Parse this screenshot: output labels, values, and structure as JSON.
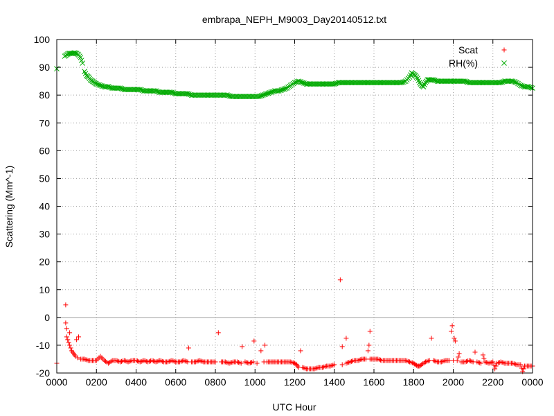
{
  "chart_data": {
    "type": "scatter",
    "title": "embrapa_NEPH_M9003_Day20140512.txt",
    "xlabel": "UTC Hour",
    "ylabel": "Scattering (Mm^-1)",
    "xlim": [
      0,
      24
    ],
    "ylim": [
      -20,
      100
    ],
    "grid": true,
    "legend_position": "top-right",
    "x_ticks": [
      {
        "value": 0,
        "label": "0000"
      },
      {
        "value": 2,
        "label": "0200"
      },
      {
        "value": 4,
        "label": "0400"
      },
      {
        "value": 6,
        "label": "0600"
      },
      {
        "value": 8,
        "label": "0800"
      },
      {
        "value": 10,
        "label": "1000"
      },
      {
        "value": 12,
        "label": "1200"
      },
      {
        "value": 14,
        "label": "1400"
      },
      {
        "value": 16,
        "label": "1600"
      },
      {
        "value": 18,
        "label": "1800"
      },
      {
        "value": 20,
        "label": "2000"
      },
      {
        "value": 22,
        "label": "2200"
      },
      {
        "value": 24,
        "label": "0000"
      }
    ],
    "y_ticks": [
      -20,
      -10,
      0,
      10,
      20,
      30,
      40,
      50,
      60,
      70,
      80,
      90,
      100
    ],
    "series": [
      {
        "name": "Scat",
        "marker": "plus",
        "color": "#ff0000",
        "points": [
          [
            0.0,
            -16.5
          ],
          [
            0.45,
            4.5
          ],
          [
            0.45,
            -2.0
          ],
          [
            0.5,
            -4.0
          ],
          [
            0.5,
            -7.0
          ],
          [
            0.55,
            -8.0
          ],
          [
            0.6,
            -9.0
          ],
          [
            0.65,
            -10.0
          ],
          [
            0.65,
            -5.5
          ],
          [
            0.7,
            -11.0
          ],
          [
            0.75,
            -12.0
          ],
          [
            0.8,
            -12.5
          ],
          [
            0.85,
            -13.0
          ],
          [
            0.9,
            -13.5
          ],
          [
            0.95,
            -14.0
          ],
          [
            1.0,
            -8.0
          ],
          [
            1.05,
            -14.5
          ],
          [
            1.1,
            -7.0
          ],
          [
            1.2,
            -15.0
          ],
          [
            1.4,
            -15.0
          ],
          [
            1.6,
            -15.5
          ],
          [
            1.8,
            -15.5
          ],
          [
            2.0,
            -15.5
          ],
          [
            2.2,
            -14.0
          ],
          [
            2.4,
            -15.5
          ],
          [
            2.6,
            -16.5
          ],
          [
            2.8,
            -15.5
          ],
          [
            3.0,
            -15.5
          ],
          [
            3.2,
            -16.0
          ],
          [
            3.4,
            -15.5
          ],
          [
            3.6,
            -16.0
          ],
          [
            3.8,
            -15.5
          ],
          [
            4.0,
            -15.5
          ],
          [
            4.2,
            -16.0
          ],
          [
            4.4,
            -15.5
          ],
          [
            4.6,
            -16.0
          ],
          [
            4.8,
            -15.5
          ],
          [
            5.0,
            -16.0
          ],
          [
            5.2,
            -15.5
          ],
          [
            5.4,
            -16.0
          ],
          [
            5.6,
            -16.0
          ],
          [
            5.8,
            -15.5
          ],
          [
            6.0,
            -16.0
          ],
          [
            6.2,
            -16.0
          ],
          [
            6.4,
            -15.5
          ],
          [
            6.6,
            -16.0
          ],
          [
            6.65,
            -11.0
          ],
          [
            6.8,
            -16.0
          ],
          [
            7.0,
            -16.0
          ],
          [
            7.2,
            -15.5
          ],
          [
            7.4,
            -16.0
          ],
          [
            7.6,
            -16.0
          ],
          [
            7.8,
            -16.0
          ],
          [
            8.0,
            -16.0
          ],
          [
            8.15,
            -5.5
          ],
          [
            8.3,
            -16.0
          ],
          [
            8.5,
            -16.0
          ],
          [
            8.7,
            -16.5
          ],
          [
            8.9,
            -16.0
          ],
          [
            9.1,
            -16.0
          ],
          [
            9.3,
            -16.5
          ],
          [
            9.35,
            -10.5
          ],
          [
            9.5,
            -16.0
          ],
          [
            9.7,
            -16.5
          ],
          [
            9.9,
            -16.0
          ],
          [
            9.95,
            -8.5
          ],
          [
            10.1,
            -16.5
          ],
          [
            10.3,
            -12.0
          ],
          [
            10.45,
            -16.0
          ],
          [
            10.5,
            -10.0
          ],
          [
            10.6,
            -16.0
          ],
          [
            10.8,
            -16.0
          ],
          [
            11.0,
            -16.0
          ],
          [
            11.2,
            -16.0
          ],
          [
            11.4,
            -16.0
          ],
          [
            11.6,
            -16.0
          ],
          [
            11.8,
            -16.0
          ],
          [
            12.0,
            -16.5
          ],
          [
            12.1,
            -17.0
          ],
          [
            12.2,
            -18.0
          ],
          [
            12.3,
            -12.0
          ],
          [
            12.4,
            -18.0
          ],
          [
            12.6,
            -18.5
          ],
          [
            12.8,
            -18.5
          ],
          [
            13.0,
            -18.5
          ],
          [
            13.2,
            -18.0
          ],
          [
            13.4,
            -18.0
          ],
          [
            13.6,
            -17.5
          ],
          [
            13.8,
            -17.5
          ],
          [
            14.0,
            -17.0
          ],
          [
            14.3,
            13.5
          ],
          [
            14.4,
            -10.5
          ],
          [
            14.4,
            -17.0
          ],
          [
            14.6,
            -7.5
          ],
          [
            14.6,
            -16.5
          ],
          [
            14.8,
            -16.0
          ],
          [
            15.0,
            -15.5
          ],
          [
            15.2,
            -15.5
          ],
          [
            15.4,
            -15.0
          ],
          [
            15.6,
            -15.0
          ],
          [
            15.7,
            -12.0
          ],
          [
            15.75,
            -10.0
          ],
          [
            15.8,
            -5.0
          ],
          [
            15.8,
            -15.0
          ],
          [
            16.0,
            -15.0
          ],
          [
            16.2,
            -15.0
          ],
          [
            16.4,
            -15.5
          ],
          [
            16.6,
            -15.5
          ],
          [
            16.8,
            -15.5
          ],
          [
            17.0,
            -15.5
          ],
          [
            17.2,
            -15.5
          ],
          [
            17.4,
            -15.5
          ],
          [
            17.6,
            -15.5
          ],
          [
            17.8,
            -16.0
          ],
          [
            18.0,
            -16.5
          ],
          [
            18.1,
            -17.0
          ],
          [
            18.2,
            -17.5
          ],
          [
            18.3,
            -17.5
          ],
          [
            18.4,
            -17.0
          ],
          [
            18.6,
            -16.0
          ],
          [
            18.8,
            -15.5
          ],
          [
            18.9,
            -7.5
          ],
          [
            19.0,
            -15.5
          ],
          [
            19.2,
            -16.0
          ],
          [
            19.4,
            -16.0
          ],
          [
            19.6,
            -15.5
          ],
          [
            19.8,
            -15.5
          ],
          [
            19.9,
            -5.0
          ],
          [
            19.95,
            -3.0
          ],
          [
            20.0,
            -15.5
          ],
          [
            20.05,
            -7.5
          ],
          [
            20.1,
            -8.5
          ],
          [
            20.2,
            -15.5
          ],
          [
            20.3,
            -13.0
          ],
          [
            20.4,
            -16.0
          ],
          [
            20.6,
            -16.0
          ],
          [
            20.8,
            -15.5
          ],
          [
            21.0,
            -16.0
          ],
          [
            21.1,
            -12.5
          ],
          [
            21.2,
            -16.0
          ],
          [
            21.4,
            -16.5
          ],
          [
            21.5,
            -13.5
          ],
          [
            21.6,
            -16.0
          ],
          [
            21.8,
            -16.5
          ],
          [
            22.0,
            -16.0
          ],
          [
            22.1,
            -18.5
          ],
          [
            22.2,
            -16.5
          ],
          [
            22.4,
            -16.0
          ],
          [
            22.6,
            -16.5
          ],
          [
            22.8,
            -16.5
          ],
          [
            23.0,
            -16.5
          ],
          [
            23.2,
            -17.0
          ],
          [
            23.4,
            -17.0
          ],
          [
            23.5,
            -19.5
          ],
          [
            23.6,
            -17.5
          ],
          [
            23.8,
            -17.5
          ],
          [
            24.0,
            -17.5
          ]
        ]
      },
      {
        "name": "RH(%)",
        "marker": "cross",
        "color": "#00aa00",
        "points": [
          [
            0.0,
            89.5
          ],
          [
            0.4,
            94.0
          ],
          [
            0.5,
            94.5
          ],
          [
            0.6,
            95.0
          ],
          [
            0.7,
            95.0
          ],
          [
            0.8,
            95.0
          ],
          [
            0.9,
            95.2
          ],
          [
            1.0,
            95.0
          ],
          [
            1.1,
            94.5
          ],
          [
            1.2,
            93.5
          ],
          [
            1.3,
            91.5
          ],
          [
            1.4,
            88.5
          ],
          [
            1.5,
            87.0
          ],
          [
            1.6,
            86.5
          ],
          [
            1.7,
            85.5
          ],
          [
            1.8,
            85.0
          ],
          [
            1.9,
            84.5
          ],
          [
            2.0,
            84.0
          ],
          [
            2.2,
            83.5
          ],
          [
            2.4,
            83.0
          ],
          [
            2.6,
            83.0
          ],
          [
            2.8,
            82.5
          ],
          [
            3.0,
            82.5
          ],
          [
            3.2,
            82.5
          ],
          [
            3.4,
            82.0
          ],
          [
            3.6,
            82.0
          ],
          [
            3.8,
            82.0
          ],
          [
            4.0,
            82.0
          ],
          [
            4.2,
            82.0
          ],
          [
            4.4,
            81.5
          ],
          [
            4.6,
            81.5
          ],
          [
            4.8,
            81.5
          ],
          [
            5.0,
            81.5
          ],
          [
            5.2,
            81.0
          ],
          [
            5.4,
            81.0
          ],
          [
            5.6,
            81.0
          ],
          [
            5.8,
            81.0
          ],
          [
            6.0,
            80.5
          ],
          [
            6.2,
            80.5
          ],
          [
            6.4,
            80.5
          ],
          [
            6.6,
            80.5
          ],
          [
            6.8,
            80.0
          ],
          [
            7.0,
            80.0
          ],
          [
            7.2,
            80.0
          ],
          [
            7.4,
            80.0
          ],
          [
            7.6,
            80.0
          ],
          [
            7.8,
            80.0
          ],
          [
            8.0,
            80.0
          ],
          [
            8.2,
            80.0
          ],
          [
            8.4,
            80.0
          ],
          [
            8.6,
            80.0
          ],
          [
            8.8,
            79.5
          ],
          [
            9.0,
            79.5
          ],
          [
            9.2,
            79.5
          ],
          [
            9.4,
            79.5
          ],
          [
            9.6,
            79.5
          ],
          [
            9.8,
            79.5
          ],
          [
            10.0,
            79.5
          ],
          [
            10.2,
            79.5
          ],
          [
            10.4,
            80.0
          ],
          [
            10.6,
            80.5
          ],
          [
            10.8,
            81.0
          ],
          [
            11.0,
            81.5
          ],
          [
            11.2,
            81.5
          ],
          [
            11.4,
            82.0
          ],
          [
            11.6,
            82.5
          ],
          [
            11.8,
            83.5
          ],
          [
            12.0,
            84.5
          ],
          [
            12.2,
            85.0
          ],
          [
            12.4,
            84.5
          ],
          [
            12.6,
            84.0
          ],
          [
            12.8,
            84.0
          ],
          [
            13.0,
            84.0
          ],
          [
            13.2,
            84.0
          ],
          [
            13.4,
            84.0
          ],
          [
            13.6,
            84.0
          ],
          [
            13.8,
            84.0
          ],
          [
            14.0,
            84.0
          ],
          [
            14.2,
            84.5
          ],
          [
            14.4,
            84.5
          ],
          [
            14.6,
            84.5
          ],
          [
            14.8,
            84.5
          ],
          [
            15.0,
            84.5
          ],
          [
            15.2,
            84.5
          ],
          [
            15.4,
            84.5
          ],
          [
            15.6,
            84.5
          ],
          [
            15.8,
            84.5
          ],
          [
            16.0,
            84.5
          ],
          [
            16.2,
            84.5
          ],
          [
            16.4,
            84.5
          ],
          [
            16.6,
            84.5
          ],
          [
            16.8,
            84.5
          ],
          [
            17.0,
            84.5
          ],
          [
            17.2,
            84.5
          ],
          [
            17.4,
            84.5
          ],
          [
            17.6,
            85.0
          ],
          [
            17.8,
            86.5
          ],
          [
            17.9,
            88.0
          ],
          [
            18.0,
            87.5
          ],
          [
            18.1,
            87.0
          ],
          [
            18.2,
            86.0
          ],
          [
            18.3,
            84.5
          ],
          [
            18.4,
            83.5
          ],
          [
            18.5,
            83.0
          ],
          [
            18.6,
            84.5
          ],
          [
            18.7,
            85.5
          ],
          [
            18.8,
            85.5
          ],
          [
            19.0,
            85.5
          ],
          [
            19.2,
            85.0
          ],
          [
            19.4,
            85.0
          ],
          [
            19.6,
            85.0
          ],
          [
            19.8,
            85.0
          ],
          [
            20.0,
            85.0
          ],
          [
            20.2,
            85.0
          ],
          [
            20.4,
            85.0
          ],
          [
            20.6,
            85.0
          ],
          [
            20.8,
            84.5
          ],
          [
            21.0,
            84.5
          ],
          [
            21.2,
            84.5
          ],
          [
            21.4,
            84.5
          ],
          [
            21.6,
            84.5
          ],
          [
            21.8,
            84.5
          ],
          [
            22.0,
            84.5
          ],
          [
            22.2,
            84.5
          ],
          [
            22.4,
            84.5
          ],
          [
            22.6,
            85.0
          ],
          [
            22.8,
            85.0
          ],
          [
            23.0,
            85.0
          ],
          [
            23.2,
            84.5
          ],
          [
            23.4,
            83.5
          ],
          [
            23.6,
            83.0
          ],
          [
            23.8,
            83.0
          ],
          [
            24.0,
            82.5
          ]
        ]
      }
    ]
  }
}
